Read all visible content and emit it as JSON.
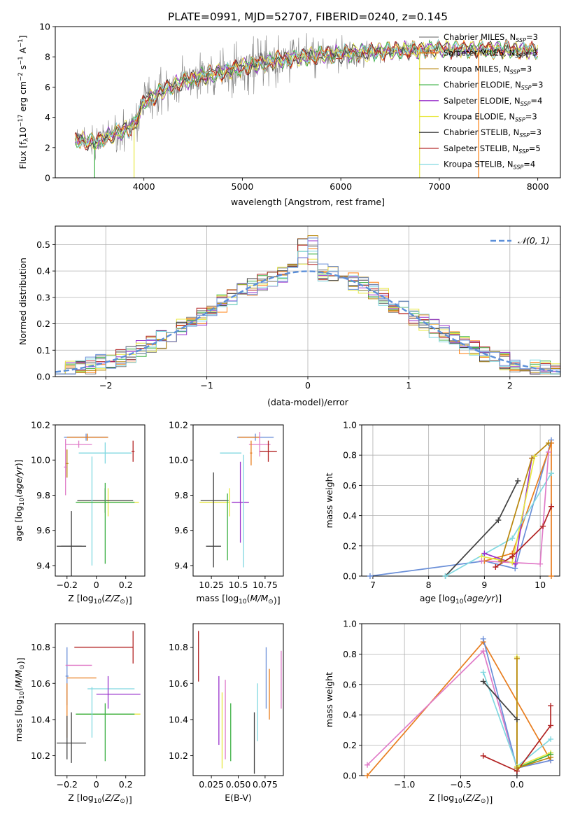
{
  "figure": {
    "title": "PLATE=0991, MJD=52707, FIBERID=0240, z=0.145"
  },
  "colors": {
    "Chabrier MILES": "#808080",
    "Salpeter MILES": "#ff7f0e",
    "Kroupa MILES": "#b8860b",
    "Chabrier ELODIE": "#3cb044",
    "Salpeter ELODIE": "#9932cc",
    "Kroupa ELODIE": "#e8e840",
    "Chabrier STELIB": "#404040",
    "Salpeter STELIB": "#b22222",
    "Kroupa STELIB": "#80d8e0",
    "extra1": "#6a8fd8",
    "extra2": "#e07bc8",
    "extra3": "#e87d1e"
  },
  "chart_data": [
    {
      "id": "spectrum",
      "type": "line",
      "title": "PLATE=0991, MJD=52707, FIBERID=0240, z=0.145",
      "xlabel": "wavelength [Angstrom, rest frame]",
      "ylabel": "Flux [f",
      "ylabel_parts": [
        "Flux [f",
        "λ",
        "10",
        "−17",
        " erg cm",
        "−2",
        " s",
        "−1",
        " A",
        "−1",
        "]"
      ],
      "xlim": [
        3100,
        8230
      ],
      "ylim": [
        0,
        10
      ],
      "xticks": [
        4000,
        5000,
        6000,
        7000,
        8000
      ],
      "yticks": [
        0,
        2,
        4,
        6,
        8,
        10
      ],
      "grid": false,
      "legend_position": "right",
      "legend": [
        {
          "base": "Chabrier MILES, N",
          "sub": "SSP",
          "tail": "=3",
          "color": "#808080"
        },
        {
          "base": "Salpeter MILES, N",
          "sub": "SSP",
          "tail": "=3",
          "color": "#ff7f0e"
        },
        {
          "base": "Kroupa MILES, N",
          "sub": "SSP",
          "tail": "=3",
          "color": "#b8860b"
        },
        {
          "base": "Chabrier ELODIE, N",
          "sub": "SSP",
          "tail": "=3",
          "color": "#3cb044"
        },
        {
          "base": "Salpeter ELODIE, N",
          "sub": "SSP",
          "tail": "=4",
          "color": "#9932cc"
        },
        {
          "base": "Kroupa ELODIE, N",
          "sub": "SSP",
          "tail": "=3",
          "color": "#e8e840"
        },
        {
          "base": "Chabrier STELIB, N",
          "sub": "SSP",
          "tail": "=3",
          "color": "#404040"
        },
        {
          "base": "Salpeter STELIB, N",
          "sub": "SSP",
          "tail": "=5",
          "color": "#b22222"
        },
        {
          "base": "Kroupa STELIB, N",
          "sub": "SSP",
          "tail": "=4",
          "color": "#80d8e0"
        }
      ],
      "continuum": [
        [
          3300,
          2.6
        ],
        [
          3500,
          2.3
        ],
        [
          3700,
          2.9
        ],
        [
          3900,
          3.4
        ],
        [
          4000,
          5.0
        ],
        [
          4200,
          5.8
        ],
        [
          4400,
          6.4
        ],
        [
          4600,
          6.7
        ],
        [
          4800,
          7.0
        ],
        [
          5000,
          7.3
        ],
        [
          5200,
          7.6
        ],
        [
          5400,
          7.8
        ],
        [
          5600,
          8.0
        ],
        [
          5800,
          8.1
        ],
        [
          6000,
          8.2
        ],
        [
          6200,
          8.3
        ],
        [
          6400,
          8.35
        ],
        [
          6600,
          8.4
        ],
        [
          6800,
          8.45
        ],
        [
          7000,
          8.5
        ],
        [
          7200,
          8.5
        ],
        [
          7400,
          8.5
        ],
        [
          7600,
          8.5
        ],
        [
          7800,
          8.45
        ],
        [
          8000,
          8.4
        ]
      ],
      "raw_noise_amplitude": [
        [
          3300,
          1.0
        ],
        [
          4000,
          1.6
        ],
        [
          5200,
          2.0
        ],
        [
          6000,
          1.3
        ],
        [
          6800,
          0.6
        ],
        [
          7400,
          0.4
        ],
        [
          8000,
          0.5
        ]
      ],
      "spike_lines": [
        {
          "x": 3500,
          "color": "#3cb044"
        },
        {
          "x": 3900,
          "color": "#e8e840"
        },
        {
          "x": 6800,
          "color": "#e8e840"
        },
        {
          "x": 7400,
          "color": "#ff7f0e"
        }
      ]
    },
    {
      "id": "residuals",
      "type": "histogram",
      "xlabel": "(data-model)/error",
      "ylabel": "Normed distribution",
      "xlim": [
        -2.5,
        2.5
      ],
      "ylim": [
        0,
        0.57
      ],
      "xticks": [
        -2,
        -1,
        0,
        1,
        2
      ],
      "yticks": [
        0,
        0.1,
        0.2,
        0.3,
        0.4,
        0.5
      ],
      "grid": true,
      "legend_position": "upper right",
      "legend_text": "𝒩(0, 1)",
      "gaussian": {
        "mean": 0,
        "sigma": 1,
        "color": "#5b8fd9"
      },
      "bins": {
        "start": -2.5,
        "width": 0.1,
        "count": 50
      }
    },
    {
      "id": "age-vs-Z",
      "type": "errorbar",
      "xlabel": "Z [log10(Z/Z⊙)]",
      "ylabel": "age [log10(age/yr)]",
      "xlim": [
        -0.28,
        0.33
      ],
      "ylim": [
        9.34,
        10.2
      ],
      "xticks": [
        -0.2,
        0.0,
        0.2
      ],
      "yticks": [
        9.4,
        9.6,
        9.8,
        10.0,
        10.2
      ],
      "points": [
        {
          "x": -0.07,
          "y": 10.13,
          "xerr": 0.15,
          "yerr": 0.02,
          "color": "#6a8fd8"
        },
        {
          "x": -0.06,
          "y": 10.13,
          "xerr": 0.14,
          "yerr": 0.02,
          "color": "#e87d1e"
        },
        {
          "x": -0.12,
          "y": 10.09,
          "xerr": 0.09,
          "yerr": 0.02,
          "color": "#e07bc8"
        },
        {
          "x": 0.06,
          "y": 10.04,
          "xerr": 0.18,
          "yerr": 0.06,
          "color": "#80d8e0"
        },
        {
          "x": 0.25,
          "y": 10.05,
          "xerr": 0.01,
          "yerr": 0.06,
          "color": "#b22222"
        },
        {
          "x": -0.2,
          "y": 9.98,
          "xerr": 0.01,
          "yerr": 0.08,
          "color": "#b8860b"
        },
        {
          "x": -0.21,
          "y": 9.96,
          "xerr": 0.01,
          "yerr": 0.16,
          "color": "#e07bc8"
        },
        {
          "x": 0.08,
          "y": 9.76,
          "xerr": 0.21,
          "yerr": 0.08,
          "color": "#e8e840"
        },
        {
          "x": 0.06,
          "y": 9.77,
          "xerr": 0.19,
          "yerr": 0.07,
          "color": "#404040"
        },
        {
          "x": -0.03,
          "y": 9.71,
          "xerr": 0.0,
          "yerr": 0.31,
          "color": "#80d8e0"
        },
        {
          "x": 0.06,
          "y": 9.64,
          "xerr": 0.0,
          "yerr": 0.23,
          "color": "#3cb044"
        },
        {
          "x": -0.17,
          "y": 9.51,
          "xerr": 0.1,
          "yerr": 0.2,
          "color": "#404040"
        },
        {
          "x": -0.17,
          "y": 9.51,
          "xerr": 0.07,
          "yerr": 0.0,
          "color": "#404040"
        },
        {
          "x": 0.06,
          "y": 9.76,
          "xerr": 0.2,
          "yerr": 0.0,
          "color": "#3cb044"
        }
      ]
    },
    {
      "id": "age-vs-mass",
      "type": "errorbar",
      "xlabel": "mass [log10(M/M⊙)]",
      "ylabel": "",
      "xlim": [
        10.08,
        10.92
      ],
      "ylim": [
        9.34,
        10.2
      ],
      "xticks": [
        10.25,
        10.5,
        10.75
      ],
      "yticks": [
        9.4,
        9.6,
        9.8,
        10.0,
        10.2
      ],
      "points": [
        {
          "x": 10.66,
          "y": 10.13,
          "xerr": 0.17,
          "yerr": 0.02,
          "color": "#6a8fd8"
        },
        {
          "x": 10.6,
          "y": 10.13,
          "xerr": 0.1,
          "yerr": 0.0,
          "color": "#e87d1e"
        },
        {
          "x": 10.7,
          "y": 10.09,
          "xerr": 0.1,
          "yerr": 0.07,
          "color": "#e07bc8"
        },
        {
          "x": 10.43,
          "y": 10.04,
          "xerr": 0.1,
          "yerr": 0.0,
          "color": "#80d8e0"
        },
        {
          "x": 10.78,
          "y": 10.05,
          "xerr": 0.08,
          "yerr": 0.06,
          "color": "#b22222"
        },
        {
          "x": 10.62,
          "y": 10.04,
          "xerr": 0.01,
          "yerr": 0.07,
          "color": "#e87d1e"
        },
        {
          "x": 10.52,
          "y": 9.76,
          "xerr": 0.08,
          "yerr": 0.23,
          "color": "#9932cc"
        },
        {
          "x": 10.55,
          "y": 9.71,
          "xerr": 0.0,
          "yerr": 0.32,
          "color": "#80d8e0"
        },
        {
          "x": 10.42,
          "y": 9.76,
          "xerr": 0.0,
          "yerr": 0.08,
          "color": "#e8e840"
        },
        {
          "x": 10.28,
          "y": 9.76,
          "xerr": 0.14,
          "yerr": 0.0,
          "color": "#e8e840"
        },
        {
          "x": 10.28,
          "y": 9.77,
          "xerr": 0.13,
          "yerr": 0.0,
          "color": "#404040"
        },
        {
          "x": 10.27,
          "y": 9.66,
          "xerr": 0.0,
          "yerr": 0.27,
          "color": "#404040"
        },
        {
          "x": 10.4,
          "y": 9.62,
          "xerr": 0.0,
          "yerr": 0.19,
          "color": "#3cb044"
        },
        {
          "x": 10.27,
          "y": 9.51,
          "xerr": 0.07,
          "yerr": 0.0,
          "color": "#404040"
        }
      ]
    },
    {
      "id": "massweight-vs-age",
      "type": "line",
      "xlabel": "age [log10(age/yr)]",
      "ylabel": "mass weight",
      "xlim": [
        6.8,
        10.35
      ],
      "ylim": [
        0,
        1.0
      ],
      "xticks": [
        7,
        8,
        9,
        10
      ],
      "yticks": [
        0.0,
        0.2,
        0.4,
        0.6,
        0.8,
        1.0
      ],
      "grid": true,
      "series": [
        {
          "color": "#6a8fd8",
          "x": [
            6.95,
            9.0,
            9.55,
            10.2
          ],
          "y": [
            0.0,
            0.1,
            0.05,
            0.9
          ]
        },
        {
          "color": "#404040",
          "x": [
            8.3,
            9.25,
            9.6
          ],
          "y": [
            0.0,
            0.37,
            0.63
          ]
        },
        {
          "color": "#e87d1e",
          "x": [
            9.0,
            9.5,
            10.2,
            10.2
          ],
          "y": [
            0.1,
            0.15,
            0.88,
            0.0
          ]
        },
        {
          "color": "#9932cc",
          "x": [
            9.0,
            9.55,
            9.85
          ],
          "y": [
            0.15,
            0.08,
            0.78
          ]
        },
        {
          "color": "#e8e840",
          "x": [
            8.95,
            9.5,
            9.9
          ],
          "y": [
            0.13,
            0.09,
            0.79
          ]
        },
        {
          "color": "#80d8e0",
          "x": [
            8.3,
            9.5,
            10.2
          ],
          "y": [
            0.0,
            0.25,
            0.68
          ]
        },
        {
          "color": "#b22222",
          "x": [
            9.2,
            9.5,
            10.05,
            10.2
          ],
          "y": [
            0.06,
            0.13,
            0.33,
            0.46
          ]
        },
        {
          "color": "#e07bc8",
          "x": [
            8.95,
            10.0,
            10.15
          ],
          "y": [
            0.1,
            0.08,
            0.82
          ]
        },
        {
          "color": "#b8860b",
          "x": [
            9.3,
            9.85,
            10.15
          ],
          "y": [
            0.1,
            0.78,
            0.88
          ]
        }
      ]
    },
    {
      "id": "mass-vs-Z",
      "type": "errorbar",
      "xlabel": "Z [log10(Z/Z⊙)]",
      "ylabel": "mass [log10(M/M⊙)]",
      "xlim": [
        -0.28,
        0.33
      ],
      "ylim": [
        10.09,
        10.93
      ],
      "xticks": [
        -0.2,
        0.0,
        0.2
      ],
      "yticks": [
        10.2,
        10.4,
        10.6,
        10.8
      ],
      "points": [
        {
          "x": 0.05,
          "y": 10.8,
          "xerr": 0.2,
          "yerr": 0.0,
          "color": "#b22222"
        },
        {
          "x": 0.25,
          "y": 10.8,
          "xerr": 0.0,
          "yerr": 0.09,
          "color": "#b22222"
        },
        {
          "x": -0.2,
          "y": 10.64,
          "xerr": 0.01,
          "yerr": 0.16,
          "color": "#6a8fd8"
        },
        {
          "x": -0.12,
          "y": 10.7,
          "xerr": 0.09,
          "yerr": 0.0,
          "color": "#e07bc8"
        },
        {
          "x": -0.1,
          "y": 10.63,
          "xerr": 0.1,
          "yerr": 0.0,
          "color": "#e87d1e"
        },
        {
          "x": 0.1,
          "y": 10.57,
          "xerr": 0.16,
          "yerr": 0.0,
          "color": "#80d8e0"
        },
        {
          "x": 0.15,
          "y": 10.54,
          "xerr": 0.15,
          "yerr": 0.0,
          "color": "#9932cc"
        },
        {
          "x": 0.08,
          "y": 10.43,
          "xerr": 0.22,
          "yerr": 0.0,
          "color": "#e8e840"
        },
        {
          "x": 0.06,
          "y": 10.43,
          "xerr": 0.2,
          "yerr": 0.0,
          "color": "#3cb044"
        },
        {
          "x": 0.08,
          "y": 10.55,
          "xerr": 0.0,
          "yerr": 0.09,
          "color": "#9932cc"
        },
        {
          "x": -0.03,
          "y": 10.44,
          "xerr": 0.0,
          "yerr": 0.14,
          "color": "#80d8e0"
        },
        {
          "x": 0.06,
          "y": 10.33,
          "xerr": 0.0,
          "yerr": 0.16,
          "color": "#3cb044"
        },
        {
          "x": -0.17,
          "y": 10.27,
          "xerr": 0.1,
          "yerr": 0.0,
          "color": "#404040"
        },
        {
          "x": -0.17,
          "y": 10.3,
          "xerr": 0.0,
          "yerr": 0.14,
          "color": "#404040"
        },
        {
          "x": -0.2,
          "y": 10.45,
          "xerr": 0.0,
          "yerr": 0.15,
          "color": "#e87d1e"
        },
        {
          "x": -0.2,
          "y": 10.3,
          "xerr": 0.0,
          "yerr": 0.12,
          "color": "#404040"
        }
      ]
    },
    {
      "id": "mass-vs-EBV",
      "type": "errorbar",
      "xlabel": "E(B-V)",
      "ylabel": "",
      "xlim": [
        0.008,
        0.092
      ],
      "ylim": [
        10.09,
        10.93
      ],
      "xticks": [
        0.025,
        0.05,
        0.075
      ],
      "xticklabels": [
        "0.025",
        "0.050",
        "0.075"
      ],
      "yticks": [
        10.2,
        10.4,
        10.6,
        10.8
      ],
      "points": [
        {
          "x": 0.013,
          "y": 10.75,
          "xerr": 0.0,
          "yerr": 0.14,
          "color": "#b22222"
        },
        {
          "x": 0.032,
          "y": 10.45,
          "xerr": 0.0,
          "yerr": 0.19,
          "color": "#9932cc"
        },
        {
          "x": 0.035,
          "y": 10.34,
          "xerr": 0.0,
          "yerr": 0.21,
          "color": "#e8e840"
        },
        {
          "x": 0.038,
          "y": 10.4,
          "xerr": 0.0,
          "yerr": 0.22,
          "color": "#e07bc8"
        },
        {
          "x": 0.043,
          "y": 10.33,
          "xerr": 0.0,
          "yerr": 0.16,
          "color": "#3cb044"
        },
        {
          "x": 0.065,
          "y": 10.27,
          "xerr": 0.0,
          "yerr": 0.17,
          "color": "#404040"
        },
        {
          "x": 0.068,
          "y": 10.44,
          "xerr": 0.0,
          "yerr": 0.16,
          "color": "#80d8e0"
        },
        {
          "x": 0.076,
          "y": 10.63,
          "xerr": 0.0,
          "yerr": 0.17,
          "color": "#6a8fd8"
        },
        {
          "x": 0.079,
          "y": 10.54,
          "xerr": 0.0,
          "yerr": 0.14,
          "color": "#e87d1e"
        },
        {
          "x": 0.09,
          "y": 10.62,
          "xerr": 0.0,
          "yerr": 0.16,
          "color": "#e07bc8"
        }
      ]
    },
    {
      "id": "massweight-vs-Z",
      "type": "line",
      "xlabel": "Z [log10(Z/Z⊙)]",
      "ylabel": "mass weight",
      "xlim": [
        -1.38,
        0.38
      ],
      "ylim": [
        0,
        1.0
      ],
      "xticks": [
        -1.0,
        -0.5,
        0.0
      ],
      "xticklabels": [
        "−1.0",
        "−0.5",
        "0.0"
      ],
      "yticks": [
        0.0,
        0.2,
        0.4,
        0.6,
        0.8,
        1.0
      ],
      "grid": true,
      "series": [
        {
          "color": "#e87d1e",
          "x": [
            -1.33,
            -0.3,
            0.3
          ],
          "y": [
            0.0,
            0.88,
            0.1
          ]
        },
        {
          "color": "#e07bc8",
          "x": [
            -1.33,
            -0.3,
            0.0,
            0.3
          ],
          "y": [
            0.07,
            0.82,
            0.05,
            0.1
          ]
        },
        {
          "color": "#6a8fd8",
          "x": [
            -0.3,
            0.0,
            0.3
          ],
          "y": [
            0.9,
            0.05,
            0.1
          ]
        },
        {
          "color": "#80d8e0",
          "x": [
            -0.3,
            0.0,
            0.3
          ],
          "y": [
            0.68,
            0.06,
            0.24
          ]
        },
        {
          "color": "#404040",
          "x": [
            -0.3,
            0.0,
            0.0
          ],
          "y": [
            0.62,
            0.37,
            0.0
          ]
        },
        {
          "color": "#e8e840",
          "x": [
            0.0,
            0.0,
            0.3
          ],
          "y": [
            0.78,
            0.06,
            0.15
          ]
        },
        {
          "color": "#3cb044",
          "x": [
            0.0,
            0.3
          ],
          "y": [
            0.05,
            0.14
          ]
        },
        {
          "color": "#b22222",
          "x": [
            -0.3,
            0.0,
            0.3,
            0.3
          ],
          "y": [
            0.13,
            0.03,
            0.33,
            0.46
          ]
        },
        {
          "color": "#b8860b",
          "x": [
            0.0,
            0.0,
            0.3
          ],
          "y": [
            0.77,
            0.05,
            0.12
          ]
        }
      ]
    }
  ]
}
